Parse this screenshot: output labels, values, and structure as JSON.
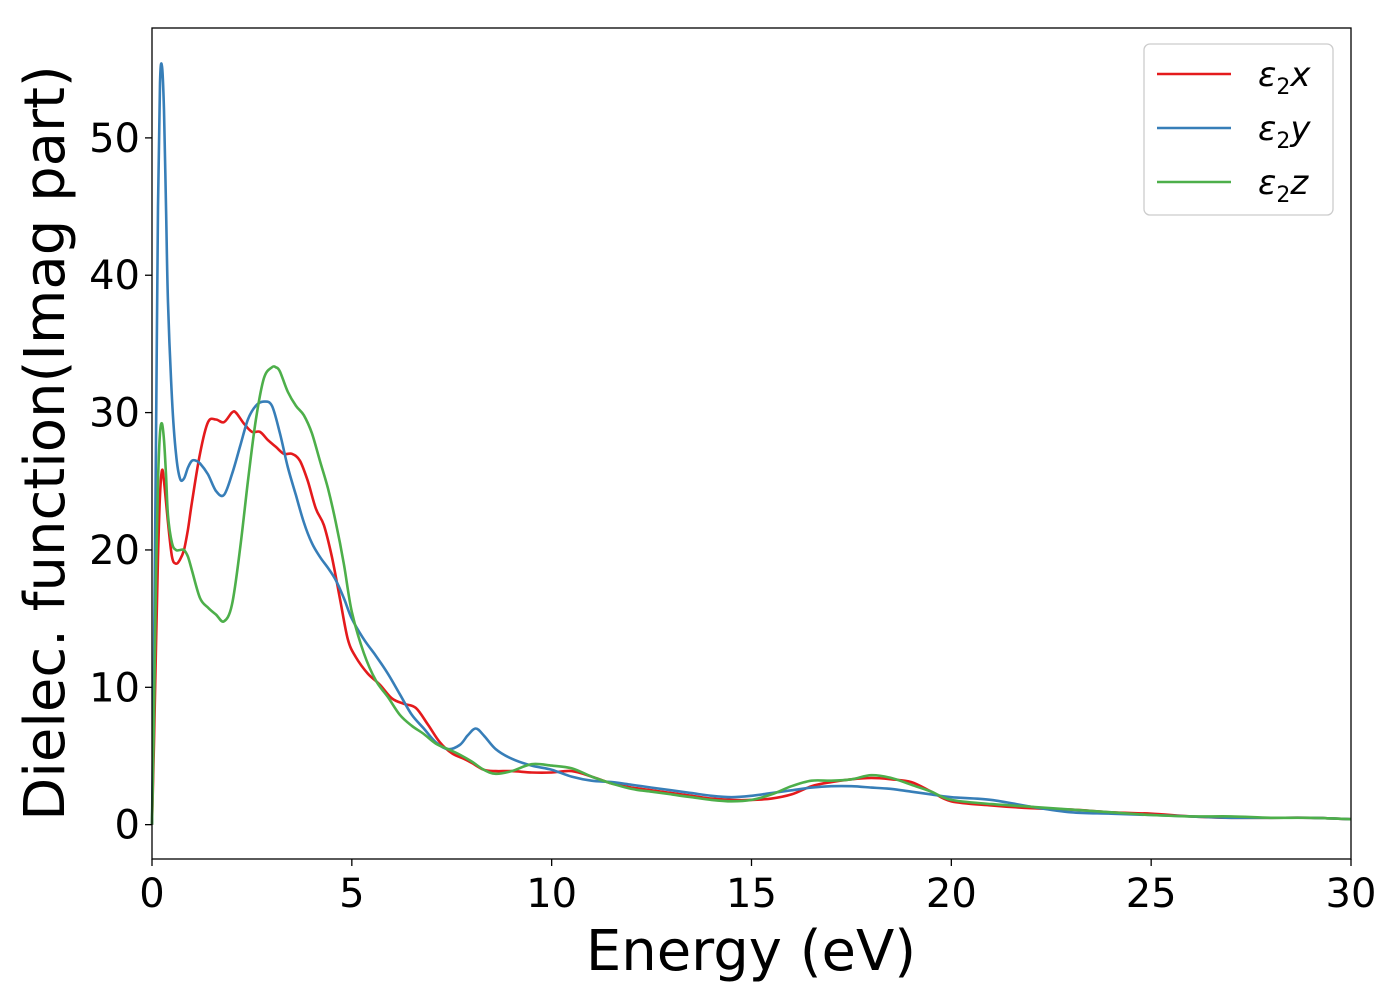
{
  "chart_data": {
    "type": "line",
    "xlabel": "Energy (eV)",
    "ylabel": "Dielec. function(Imag part)",
    "xlim": [
      0,
      30
    ],
    "ylim": [
      -2.5,
      58
    ],
    "xticks": [
      0,
      5,
      10,
      15,
      20,
      25,
      30
    ],
    "yticks": [
      0,
      10,
      20,
      30,
      40,
      50
    ],
    "grid": false,
    "legend_position": "top-right",
    "series": [
      {
        "name": "ε2x",
        "legend": {
          "base": "ε",
          "sub": "2",
          "suffix": "x"
        },
        "color": "#e41a1c",
        "x": [
          0.0,
          0.05,
          0.1,
          0.15,
          0.2,
          0.25,
          0.3,
          0.4,
          0.5,
          0.6,
          0.7,
          0.8,
          0.9,
          1.0,
          1.2,
          1.4,
          1.6,
          1.8,
          2.0,
          2.1,
          2.3,
          2.5,
          2.7,
          2.9,
          3.1,
          3.3,
          3.5,
          3.7,
          3.9,
          4.1,
          4.3,
          4.5,
          4.7,
          4.9,
          5.1,
          5.4,
          5.7,
          6.0,
          6.3,
          6.6,
          6.9,
          7.2,
          7.5,
          7.8,
          8.0,
          8.3,
          8.6,
          9.0,
          9.5,
          10.0,
          10.5,
          11.0,
          11.5,
          12.0,
          12.5,
          13.0,
          13.5,
          14.0,
          14.5,
          15.0,
          15.5,
          16.0,
          16.5,
          17.0,
          17.5,
          18.0,
          18.5,
          19.0,
          19.5,
          20.0,
          21.0,
          22.0,
          23.0,
          24.0,
          25.0,
          26.0,
          27.0,
          28.0,
          29.0,
          30.0
        ],
        "y": [
          0.0,
          6.0,
          13.0,
          19.5,
          24.0,
          25.8,
          25.0,
          22.0,
          19.5,
          19.0,
          19.3,
          20.0,
          21.5,
          23.5,
          27.0,
          29.3,
          29.5,
          29.3,
          30.0,
          30.0,
          29.2,
          28.6,
          28.6,
          28.0,
          27.5,
          27.0,
          27.0,
          26.5,
          25.0,
          23.0,
          21.8,
          19.5,
          16.5,
          13.5,
          12.2,
          11.0,
          10.2,
          9.2,
          8.8,
          8.5,
          7.3,
          6.0,
          5.2,
          4.8,
          4.5,
          4.0,
          3.9,
          3.9,
          3.8,
          3.8,
          3.9,
          3.5,
          3.0,
          2.7,
          2.5,
          2.3,
          2.1,
          1.9,
          1.8,
          1.8,
          1.9,
          2.2,
          2.8,
          3.1,
          3.3,
          3.4,
          3.3,
          3.1,
          2.4,
          1.7,
          1.4,
          1.2,
          1.1,
          0.9,
          0.8,
          0.6,
          0.5,
          0.5,
          0.5,
          0.4
        ]
      },
      {
        "name": "ε2y",
        "legend": {
          "base": "ε",
          "sub": "2",
          "suffix": "y"
        },
        "color": "#377eb8",
        "x": [
          0.0,
          0.05,
          0.1,
          0.15,
          0.2,
          0.25,
          0.3,
          0.35,
          0.4,
          0.5,
          0.6,
          0.7,
          0.8,
          0.9,
          1.0,
          1.1,
          1.2,
          1.4,
          1.6,
          1.8,
          2.0,
          2.2,
          2.4,
          2.6,
          2.8,
          3.0,
          3.2,
          3.4,
          3.6,
          3.8,
          4.0,
          4.2,
          4.4,
          4.6,
          4.8,
          5.0,
          5.3,
          5.6,
          5.9,
          6.2,
          6.5,
          6.8,
          7.1,
          7.4,
          7.7,
          7.9,
          8.1,
          8.3,
          8.6,
          9.0,
          9.5,
          10.0,
          10.5,
          11.0,
          11.5,
          12.0,
          12.5,
          13.0,
          13.5,
          14.0,
          14.5,
          15.0,
          15.5,
          16.0,
          16.5,
          17.0,
          17.5,
          18.0,
          18.5,
          19.0,
          19.5,
          20.0,
          21.0,
          22.0,
          23.0,
          24.0,
          25.0,
          26.0,
          27.0,
          28.0,
          29.0,
          30.0
        ],
        "y": [
          0.0,
          12.0,
          28.0,
          45.0,
          54.0,
          55.2,
          52.0,
          45.0,
          38.0,
          31.0,
          27.0,
          25.2,
          25.2,
          26.0,
          26.5,
          26.5,
          26.3,
          25.5,
          24.3,
          24.0,
          25.5,
          27.5,
          29.5,
          30.5,
          30.8,
          30.5,
          28.5,
          26.0,
          24.0,
          22.0,
          20.5,
          19.5,
          18.7,
          17.8,
          16.5,
          15.0,
          13.5,
          12.3,
          11.0,
          9.5,
          8.0,
          7.0,
          6.0,
          5.5,
          5.8,
          6.5,
          7.0,
          6.5,
          5.5,
          4.8,
          4.3,
          4.0,
          3.5,
          3.2,
          3.1,
          2.9,
          2.7,
          2.5,
          2.3,
          2.1,
          2.0,
          2.1,
          2.3,
          2.5,
          2.7,
          2.8,
          2.8,
          2.7,
          2.6,
          2.4,
          2.2,
          2.0,
          1.8,
          1.3,
          0.9,
          0.8,
          0.7,
          0.6,
          0.5,
          0.5,
          0.5,
          0.4
        ]
      },
      {
        "name": "ε2z",
        "legend": {
          "base": "ε",
          "sub": "2",
          "suffix": "z"
        },
        "color": "#4daf4a",
        "x": [
          0.0,
          0.05,
          0.1,
          0.15,
          0.2,
          0.25,
          0.3,
          0.35,
          0.4,
          0.5,
          0.6,
          0.7,
          0.8,
          0.9,
          1.0,
          1.2,
          1.4,
          1.6,
          1.8,
          2.0,
          2.2,
          2.4,
          2.6,
          2.8,
          3.0,
          3.1,
          3.2,
          3.4,
          3.6,
          3.8,
          4.0,
          4.2,
          4.4,
          4.6,
          4.8,
          5.0,
          5.3,
          5.6,
          5.9,
          6.2,
          6.5,
          6.8,
          7.1,
          7.4,
          7.7,
          8.0,
          8.3,
          8.6,
          9.0,
          9.5,
          10.0,
          10.5,
          11.0,
          11.5,
          12.0,
          12.5,
          13.0,
          13.5,
          14.0,
          14.5,
          15.0,
          15.5,
          16.0,
          16.5,
          17.0,
          17.5,
          18.0,
          18.5,
          19.0,
          19.5,
          20.0,
          21.0,
          22.0,
          23.0,
          24.0,
          25.0,
          26.0,
          27.0,
          28.0,
          29.0,
          30.0
        ],
        "y": [
          0.0,
          8.0,
          18.0,
          25.0,
          28.5,
          29.2,
          28.0,
          25.5,
          22.5,
          20.5,
          20.0,
          20.0,
          20.0,
          19.5,
          18.5,
          16.5,
          15.8,
          15.3,
          14.8,
          16.0,
          20.0,
          25.0,
          29.5,
          32.5,
          33.3,
          33.3,
          33.0,
          31.5,
          30.5,
          29.8,
          28.5,
          26.5,
          24.5,
          22.0,
          19.0,
          15.5,
          12.5,
          10.5,
          9.3,
          8.0,
          7.2,
          6.6,
          5.9,
          5.5,
          5.1,
          4.6,
          4.0,
          3.7,
          3.9,
          4.4,
          4.3,
          4.1,
          3.5,
          3.0,
          2.6,
          2.4,
          2.2,
          2.0,
          1.8,
          1.7,
          1.8,
          2.2,
          2.8,
          3.2,
          3.2,
          3.3,
          3.6,
          3.4,
          2.9,
          2.4,
          1.8,
          1.5,
          1.3,
          1.1,
          0.9,
          0.7,
          0.6,
          0.6,
          0.5,
          0.5,
          0.4
        ]
      }
    ]
  }
}
